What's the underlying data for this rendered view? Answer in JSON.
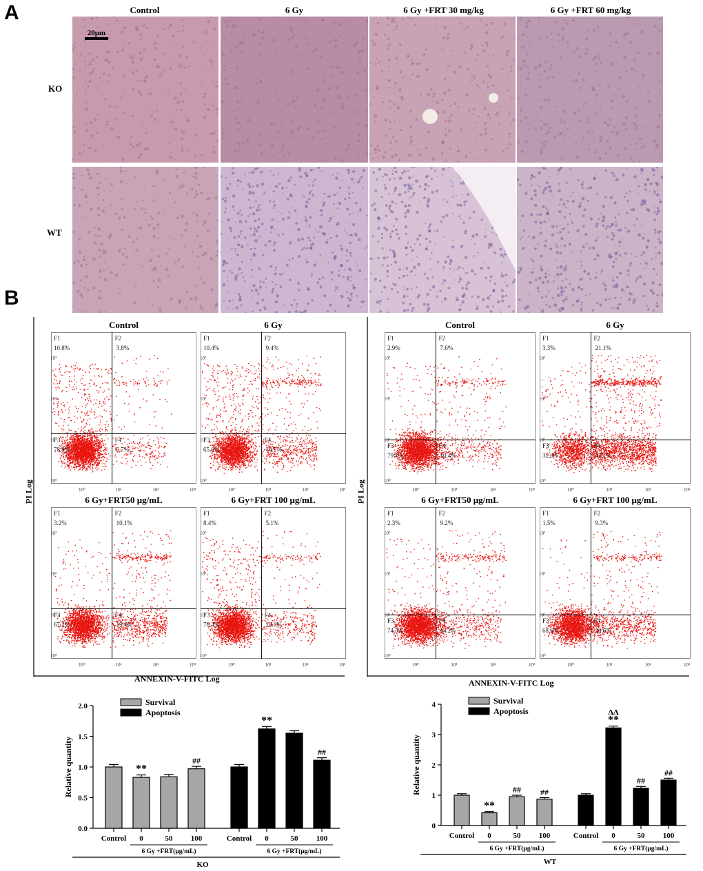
{
  "panel_a": {
    "letter": "A",
    "columns": [
      "Control",
      "6 Gy",
      "6 Gy +FRT 30 mg/kg",
      "6 Gy +FRT 60 mg/kg"
    ],
    "rows": [
      "KO",
      "WT"
    ],
    "scale_bar": "20μm"
  },
  "panel_b": {
    "letter": "B",
    "y_axis_label": "PI Log",
    "x_axis_label": "ANNEXIN-V-FITC Log",
    "left_group": {
      "plots": [
        {
          "title": "Control",
          "F1": "10.8%",
          "F2": "3.8%",
          "F3": "78.8%",
          "F4": "6.7%"
        },
        {
          "title": "6 Gy",
          "F1": "10.4%",
          "F2": "9.4%",
          "F3": "65.6%",
          "F4": "14.7%"
        },
        {
          "title": "6 Gy+FRT50 μg/mL",
          "F1": "3.2%",
          "F2": "10.1%",
          "F3": "67.2%",
          "F4": "19.4%"
        },
        {
          "title": "6 Gy+FRT 100 μg/mL",
          "F1": "8.4%",
          "F2": "5.1%",
          "F3": "76.4%",
          "F4": "10.0%"
        }
      ]
    },
    "right_group": {
      "plots": [
        {
          "title": "Control",
          "F1": "2.9%",
          "F2": "7.6%",
          "F3": "79.1%",
          "F4": "10.4%"
        },
        {
          "title": "6 Gy",
          "F1": "3.3%",
          "F2": "21.1%",
          "F3": "32.6%",
          "F4": "43.1%"
        },
        {
          "title": "6 Gy+FRT50 μg/mL",
          "F1": "2.3%",
          "F2": "9.2%",
          "F3": "74.3%",
          "F4": "14.2%"
        },
        {
          "title": "6 Gy+FRT 100 μg/mL",
          "F1": "1.5%",
          "F2": "9.3%",
          "F3": "68.6%",
          "F4": "20.6%"
        }
      ]
    },
    "quadrant_names": [
      "F1",
      "F2",
      "F3",
      "F4"
    ],
    "tick_labels": [
      "10⁰",
      "10¹",
      "10²",
      "10³"
    ]
  },
  "colors": {
    "dots": "#e8140f",
    "survival": "#a6a6a6",
    "apoptosis": "#000000"
  },
  "chart_data": [
    {
      "type": "bar",
      "group": "KO",
      "ylabel": "Relative quantity",
      "ylim": [
        0,
        2.0
      ],
      "yticks": [
        "0.0",
        "0.5",
        "1.0",
        "1.5",
        "2.0"
      ],
      "legend": [
        "Survival",
        "Apoptosis"
      ],
      "categories": [
        "Control",
        "0",
        "50",
        "100"
      ],
      "sublabel": "6 Gy +FRT(μg/mL)",
      "series": [
        {
          "name": "Survival",
          "values": [
            1.0,
            0.83,
            0.84,
            0.97
          ],
          "errors": [
            0.04,
            0.04,
            0.04,
            0.04
          ],
          "marks": [
            "",
            "**",
            "",
            "##"
          ]
        },
        {
          "name": "Apoptosis",
          "values": [
            1.0,
            1.62,
            1.55,
            1.11
          ],
          "errors": [
            0.04,
            0.04,
            0.04,
            0.04
          ],
          "marks": [
            "",
            "**",
            "",
            "##"
          ]
        }
      ]
    },
    {
      "type": "bar",
      "group": "WT",
      "ylabel": "Relative quantity",
      "ylim": [
        0,
        4
      ],
      "yticks": [
        "0",
        "1",
        "2",
        "3",
        "4"
      ],
      "legend": [
        "Survival",
        "Apoptosis"
      ],
      "categories": [
        "Control",
        "0",
        "50",
        "100"
      ],
      "sublabel": "6 Gy +FRT(μg/mL)",
      "series": [
        {
          "name": "Survival",
          "values": [
            1.0,
            0.42,
            0.95,
            0.87
          ],
          "errors": [
            0.05,
            0.04,
            0.05,
            0.05
          ],
          "marks": [
            "",
            "**",
            "##",
            "##"
          ]
        },
        {
          "name": "Apoptosis",
          "values": [
            1.0,
            3.22,
            1.23,
            1.5
          ],
          "errors": [
            0.05,
            0.06,
            0.06,
            0.06
          ],
          "marks": [
            "",
            "ΔΔ\n**",
            "##",
            "##"
          ]
        }
      ]
    }
  ]
}
